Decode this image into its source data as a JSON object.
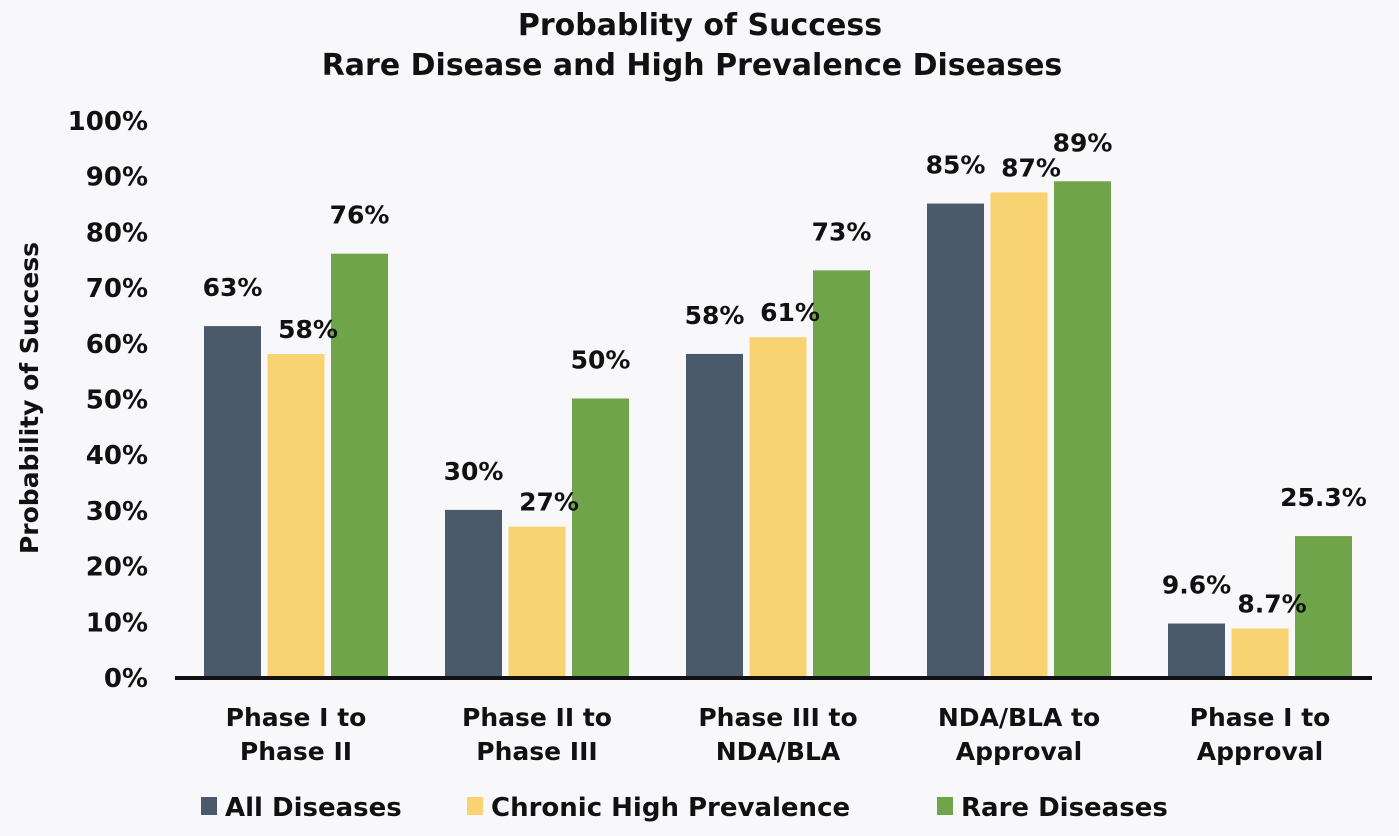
{
  "chart_data": {
    "type": "bar",
    "title": "Probablity of Success",
    "subtitle": "Rare Disease and High Prevalence Diseases",
    "xlabel": "",
    "ylabel": "Probability of Success",
    "ylim": [
      0,
      100
    ],
    "yticks": [
      "0%",
      "10%",
      "20%",
      "30%",
      "40%",
      "50%",
      "60%",
      "70%",
      "80%",
      "90%",
      "100%"
    ],
    "grid": false,
    "legend_position": "bottom",
    "categories": [
      [
        "Phase I to",
        "Phase II"
      ],
      [
        "Phase II to",
        "Phase III"
      ],
      [
        "Phase III to",
        "NDA/BLA"
      ],
      [
        "NDA/BLA to",
        "Approval"
      ],
      [
        "Phase I to",
        "Approval"
      ]
    ],
    "series": [
      {
        "name": "All Diseases",
        "color": "#4b5a6b",
        "values": [
          63,
          30,
          58,
          85,
          9.6
        ],
        "labels": [
          "63%",
          "30%",
          "58%",
          "85%",
          "9.6%"
        ]
      },
      {
        "name": "Chronic High Prevalence",
        "color": "#f9d272",
        "values": [
          58,
          27,
          61,
          87,
          8.7
        ],
        "labels": [
          "58%",
          "27%",
          "61%",
          "87%",
          "8.7%"
        ]
      },
      {
        "name": "Rare Diseases",
        "color": "#6fa44b",
        "values": [
          76,
          50,
          73,
          89,
          25.3
        ],
        "labels": [
          "76%",
          "50%",
          "73%",
          "89%",
          "25.3%"
        ]
      }
    ]
  }
}
